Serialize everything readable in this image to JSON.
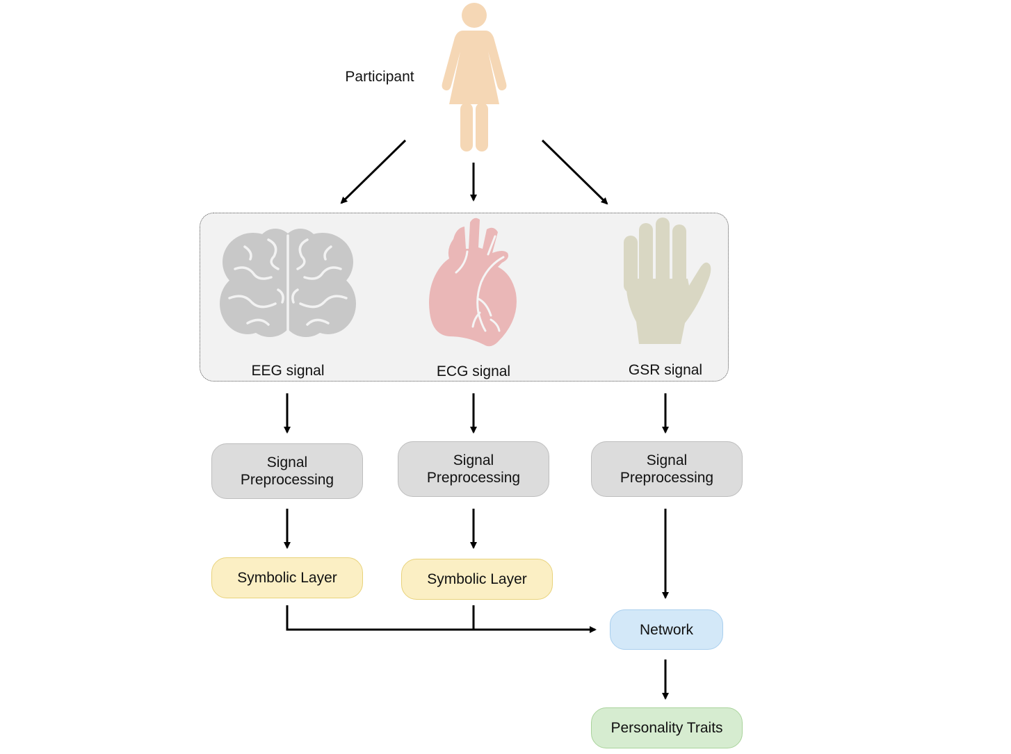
{
  "participant": {
    "label": "Participant",
    "icon": "person-icon",
    "color": "#f5d7b5"
  },
  "signals": [
    {
      "label": "EEG signal",
      "icon": "brain-icon",
      "color": "#c8c8c8"
    },
    {
      "label": "ECG signal",
      "icon": "heart-icon",
      "color": "#eab7b7"
    },
    {
      "label": "GSR signal",
      "icon": "hand-icon",
      "color": "#d9d7c3"
    }
  ],
  "preprocessing": [
    {
      "line1": "Signal",
      "line2": "Preprocessing"
    },
    {
      "line1": "Signal",
      "line2": "Preprocessing"
    },
    {
      "line1": "Signal",
      "line2": "Preprocessing"
    }
  ],
  "symbolic": [
    {
      "label": "Symbolic Layer"
    },
    {
      "label": "Symbolic Layer"
    }
  ],
  "network": {
    "label": "Network"
  },
  "output": {
    "label": "Personality Traits"
  },
  "colors": {
    "preprocessing_fill": "#dcdcdc",
    "symbolic_fill": "#fbefc4",
    "network_fill": "#d3e8f8",
    "output_fill": "#d6ecd0",
    "panel_fill": "#f2f2f2",
    "arrow": "#000000"
  }
}
